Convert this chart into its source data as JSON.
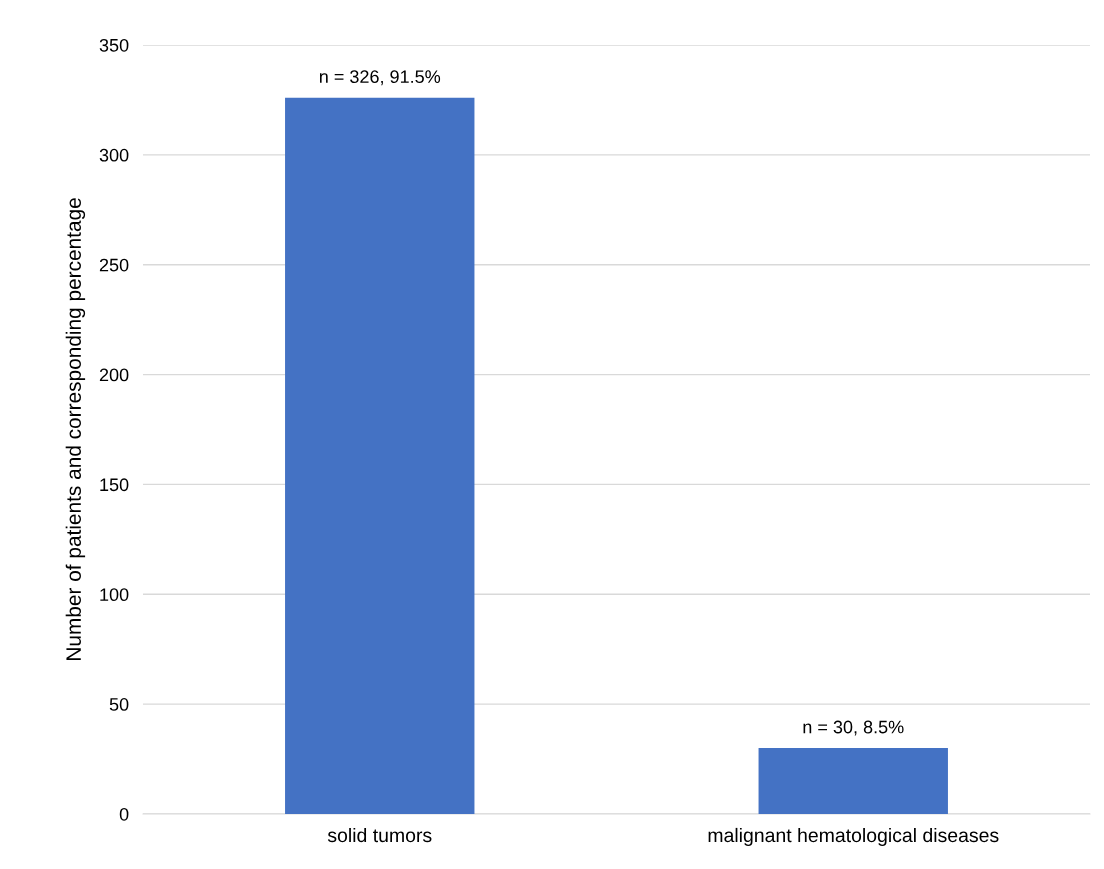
{
  "chart_data": {
    "type": "bar",
    "ylabel": "Number of patients and corresponding percentage",
    "categories": [
      "solid tumors",
      "malignant hematological diseases"
    ],
    "values": [
      326,
      30
    ],
    "color": "#4472c4",
    "value_labels": [
      "n = 326, 91.5%",
      "n = 30, 8.5%"
    ],
    "ylim": [
      0,
      350
    ],
    "yticks": [
      0,
      50,
      100,
      150,
      200,
      250,
      300,
      350
    ],
    "grid": "y",
    "legend": false
  }
}
